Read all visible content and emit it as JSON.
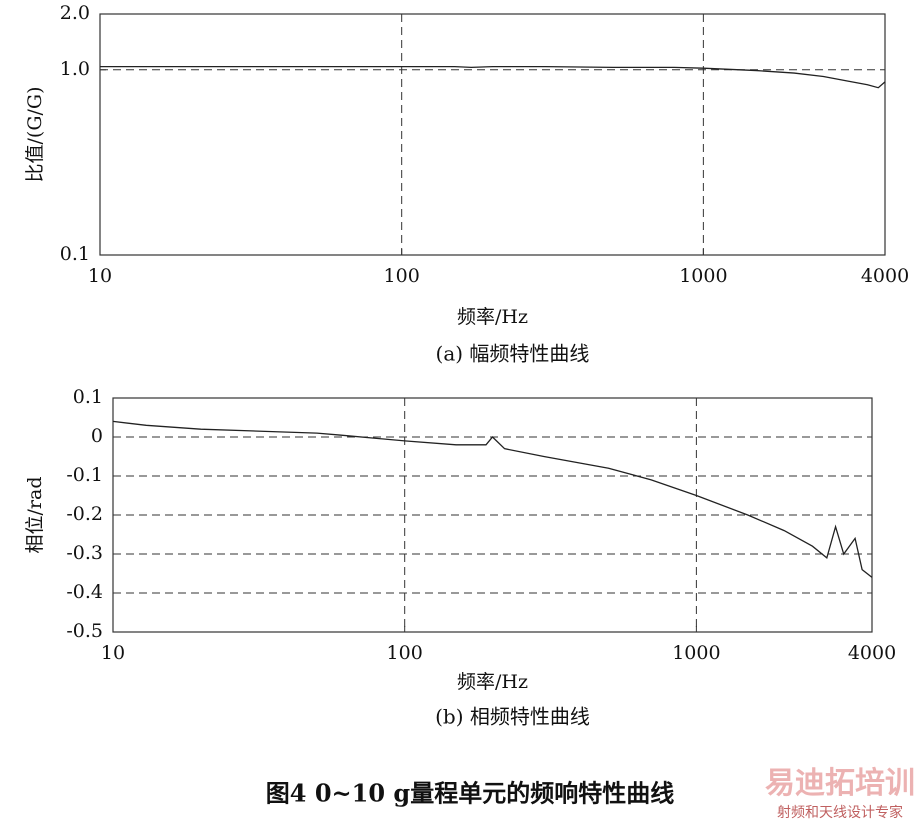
{
  "chart_data": [
    {
      "type": "line",
      "caption": "(a) 幅频特性曲线",
      "xlabel": "频率/Hz",
      "ylabel": "比值/(G/G)",
      "xscale": "log",
      "yscale": "log",
      "grid": true,
      "color": "#222222",
      "x": [
        10,
        20,
        50,
        100,
        150,
        170,
        200,
        300,
        500,
        800,
        1000,
        1500,
        2000,
        2500,
        3000,
        3500,
        3800,
        4000
      ],
      "values": [
        1.04,
        1.04,
        1.04,
        1.04,
        1.04,
        1.03,
        1.04,
        1.04,
        1.03,
        1.03,
        1.02,
        0.99,
        0.96,
        0.92,
        0.87,
        0.83,
        0.8,
        0.86
      ],
      "xlim": [
        10,
        4000
      ],
      "xticks": [
        10,
        100,
        1000,
        4000
      ],
      "ylim": [
        0.1,
        2
      ],
      "yticks": [
        0.1,
        {
          "value": 1,
          "label": "1.0"
        },
        {
          "value": 2,
          "label": "2.0"
        }
      ]
    },
    {
      "type": "line",
      "caption": "(b) 相频特性曲线",
      "xlabel": "频率/Hz",
      "ylabel": "相位/rad",
      "xscale": "log",
      "yscale": "linear",
      "grid": true,
      "color": "#222222",
      "x": [
        10,
        13,
        20,
        50,
        60,
        100,
        150,
        190,
        200,
        220,
        300,
        500,
        700,
        1000,
        1500,
        2000,
        2500,
        2800,
        3000,
        3200,
        3500,
        3700,
        4000
      ],
      "values": [
        0.04,
        0.03,
        0.02,
        0.01,
        0.005,
        -0.01,
        -0.02,
        -0.02,
        0,
        -0.03,
        -0.05,
        -0.08,
        -0.11,
        -0.15,
        -0.2,
        -0.24,
        -0.28,
        -0.31,
        -0.23,
        -0.3,
        -0.26,
        -0.34,
        -0.36
      ],
      "xlim": [
        10,
        4000
      ],
      "xticks": [
        10,
        100,
        1000,
        4000
      ],
      "ylim": [
        -0.5,
        0.1
      ],
      "yticks": [
        0.1,
        0,
        -0.1,
        -0.2,
        -0.3,
        -0.4,
        -0.5
      ]
    }
  ],
  "figure_caption": "图4   0~10 g量程单元的频响特性曲线",
  "watermark": {
    "title": "易迪拓培训",
    "subtitle": "射频和天线设计专家"
  }
}
